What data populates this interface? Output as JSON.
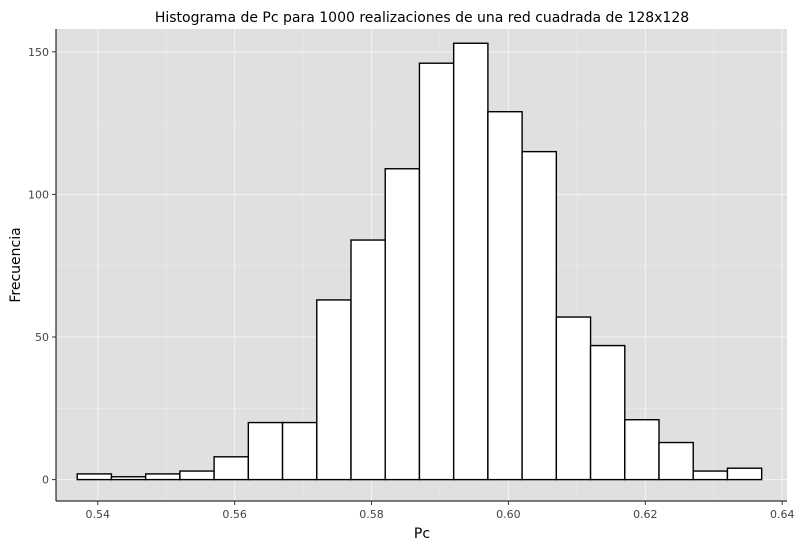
{
  "chart_data": {
    "type": "bar",
    "title": "Histograma de Pc para 1000 realizaciones de una red cuadrada de 128x128",
    "xlabel": "Pc",
    "ylabel": "Frecuencia",
    "bin_edges": [
      0.537,
      0.542,
      0.547,
      0.552,
      0.557,
      0.562,
      0.567,
      0.572,
      0.577,
      0.582,
      0.587,
      0.592,
      0.597,
      0.602,
      0.607,
      0.612,
      0.617,
      0.622,
      0.627,
      0.632,
      0.637
    ],
    "values": [
      2,
      1,
      2,
      3,
      8,
      20,
      20,
      63,
      84,
      109,
      146,
      153,
      129,
      115,
      57,
      47,
      21,
      13,
      3,
      4
    ],
    "xlim": [
      0.5339,
      0.6407
    ],
    "ylim": [
      -7.5,
      158
    ],
    "x_ticks": [
      0.54,
      0.56,
      0.58,
      0.6,
      0.62,
      0.64
    ],
    "x_tick_labels": [
      "0.54",
      "0.56",
      "0.58",
      "0.60",
      "0.62",
      "0.64"
    ],
    "y_ticks": [
      0,
      50,
      100,
      150
    ],
    "y_tick_labels": [
      "0",
      "50",
      "100",
      "150"
    ],
    "grid": true,
    "colors": {
      "panel_background": "#e0e0e0",
      "grid_major": "#f2f2f2",
      "grid_minor": "#ebebeb",
      "bar_fill": "#ffffff",
      "bar_stroke": "#000000",
      "text": "#000000",
      "tick_text": "#444444"
    }
  }
}
